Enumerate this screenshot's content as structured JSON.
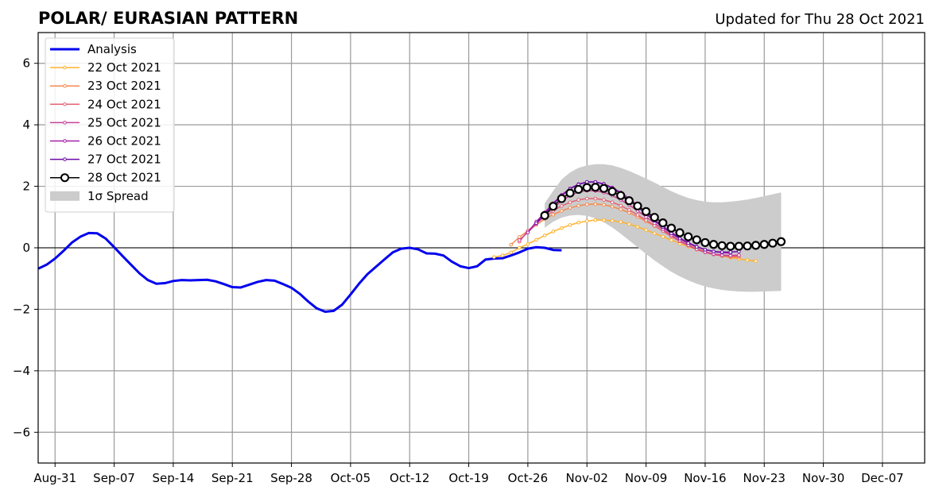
{
  "chart_data": {
    "type": "line",
    "title": "POLAR/ EURASIAN  PATTERN",
    "subtitle": "Updated for Thu 28 Oct 2021",
    "ylim": [
      -7,
      7
    ],
    "yticks": [
      -6,
      -4,
      -2,
      0,
      2,
      4,
      6
    ],
    "xlim": [
      "2021-08-29",
      "2021-12-12"
    ],
    "xticks": [
      {
        "date": "2021-08-31",
        "label": "Aug-31"
      },
      {
        "date": "2021-09-07",
        "label": "Sep-07"
      },
      {
        "date": "2021-09-14",
        "label": "Sep-14"
      },
      {
        "date": "2021-09-21",
        "label": "Sep-21"
      },
      {
        "date": "2021-09-28",
        "label": "Sep-28"
      },
      {
        "date": "2021-10-05",
        "label": "Oct-05"
      },
      {
        "date": "2021-10-12",
        "label": "Oct-12"
      },
      {
        "date": "2021-10-19",
        "label": "Oct-19"
      },
      {
        "date": "2021-10-26",
        "label": "Oct-26"
      },
      {
        "date": "2021-11-02",
        "label": "Nov-02"
      },
      {
        "date": "2021-11-09",
        "label": "Nov-09"
      },
      {
        "date": "2021-11-16",
        "label": "Nov-16"
      },
      {
        "date": "2021-11-23",
        "label": "Nov-23"
      },
      {
        "date": "2021-11-30",
        "label": "Nov-30"
      },
      {
        "date": "2021-12-07",
        "label": "Dec-07"
      }
    ],
    "grid": true,
    "legend_position": "top-left",
    "analysis": {
      "name": "Analysis",
      "color": "#0000ee",
      "start": "2021-08-29",
      "values": [
        -0.68,
        -0.55,
        -0.35,
        -0.1,
        0.17,
        0.36,
        0.48,
        0.47,
        0.3,
        0.02,
        -0.27,
        -0.55,
        -0.83,
        -1.05,
        -1.17,
        -1.15,
        -1.08,
        -1.05,
        -1.06,
        -1.05,
        -1.04,
        -1.09,
        -1.18,
        -1.28,
        -1.29,
        -1.2,
        -1.11,
        -1.05,
        -1.07,
        -1.18,
        -1.3,
        -1.5,
        -1.75,
        -1.97,
        -2.08,
        -2.05,
        -1.85,
        -1.52,
        -1.17,
        -0.86,
        -0.62,
        -0.38,
        -0.15,
        -0.03,
        0.0,
        -0.05,
        -0.18,
        -0.19,
        -0.25,
        -0.45,
        -0.6,
        -0.66,
        -0.6,
        -0.38,
        -0.35,
        -0.34,
        -0.25,
        -0.15,
        -0.03,
        0.02,
        0.0,
        -0.07,
        -0.08
      ]
    },
    "forecasts": [
      {
        "name": "22 Oct 2021",
        "color": "#ffb22b",
        "start": "2021-10-22",
        "values": [
          -0.3,
          -0.25,
          -0.15,
          0.0,
          0.12,
          0.26,
          0.4,
          0.53,
          0.64,
          0.74,
          0.82,
          0.87,
          0.9,
          0.9,
          0.88,
          0.84,
          0.77,
          0.68,
          0.58,
          0.47,
          0.36,
          0.25,
          0.14,
          0.04,
          -0.06,
          -0.14,
          -0.21,
          -0.27,
          -0.32,
          -0.36,
          -0.4,
          -0.43
        ]
      },
      {
        "name": "23 Oct 2021",
        "color": "#f58a4e",
        "start": "2021-10-24",
        "values": [
          0.1,
          0.35,
          0.55,
          0.75,
          0.93,
          1.08,
          1.2,
          1.3,
          1.37,
          1.41,
          1.42,
          1.4,
          1.34,
          1.25,
          1.14,
          1.01,
          0.86,
          0.71,
          0.55,
          0.39,
          0.24,
          0.1,
          -0.02,
          -0.12,
          -0.2,
          -0.26,
          -0.3,
          -0.31
        ]
      },
      {
        "name": "24 Oct 2021",
        "color": "#e36275",
        "start": "2021-10-25",
        "values": [
          0.2,
          0.55,
          0.8,
          1.0,
          1.2,
          1.36,
          1.48,
          1.56,
          1.6,
          1.6,
          1.56,
          1.48,
          1.37,
          1.23,
          1.07,
          0.9,
          0.72,
          0.54,
          0.37,
          0.21,
          0.07,
          -0.05,
          -0.15,
          -0.22,
          -0.26,
          -0.28,
          -0.27
        ]
      },
      {
        "name": "25 Oct 2021",
        "color": "#c94096",
        "start": "2021-10-25",
        "values": [
          0.25,
          0.5,
          0.78,
          1.05,
          1.3,
          1.52,
          1.7,
          1.82,
          1.86,
          1.85,
          1.8,
          1.7,
          1.56,
          1.39,
          1.2,
          1.0,
          0.8,
          0.6,
          0.41,
          0.23,
          0.08,
          -0.05,
          -0.14,
          -0.2,
          -0.24,
          -0.25,
          -0.24
        ]
      },
      {
        "name": "26 Oct 2021",
        "color": "#a520a8",
        "start": "2021-10-26",
        "values": [
          0.5,
          0.85,
          1.15,
          1.45,
          1.72,
          1.93,
          2.07,
          2.14,
          2.14,
          2.08,
          1.96,
          1.8,
          1.6,
          1.38,
          1.15,
          0.92,
          0.7,
          0.5,
          0.32,
          0.17,
          0.04,
          -0.06,
          -0.12,
          -0.16,
          -0.17
        ]
      },
      {
        "name": "27 Oct 2021",
        "color": "#6a0ba8",
        "start": "2021-10-27",
        "values": [
          0.8,
          1.1,
          1.42,
          1.7,
          1.92,
          2.06,
          2.14,
          2.14,
          2.07,
          1.94,
          1.76,
          1.55,
          1.33,
          1.1,
          0.88,
          0.67,
          0.47,
          0.3,
          0.15,
          0.03,
          -0.06,
          -0.12,
          -0.14,
          -0.14,
          -0.12
        ]
      },
      {
        "name": "28 Oct 2021",
        "color": "#000000",
        "start": "2021-10-28",
        "markers": "open-circle",
        "values": [
          1.05,
          1.35,
          1.6,
          1.78,
          1.9,
          1.96,
          1.97,
          1.93,
          1.83,
          1.7,
          1.53,
          1.36,
          1.18,
          0.99,
          0.81,
          0.64,
          0.49,
          0.36,
          0.26,
          0.17,
          0.11,
          0.07,
          0.05,
          0.05,
          0.06,
          0.08,
          0.11,
          0.15,
          0.2
        ]
      }
    ],
    "spread": {
      "name": "1σ Spread",
      "color": "#cccccc",
      "start": "2021-10-28",
      "lower": [
        0.65,
        0.85,
        0.98,
        1.05,
        1.07,
        1.04,
        0.96,
        0.83,
        0.66,
        0.46,
        0.24,
        0.02,
        -0.2,
        -0.41,
        -0.6,
        -0.78,
        -0.93,
        -1.06,
        -1.17,
        -1.26,
        -1.32,
        -1.37,
        -1.4,
        -1.42,
        -1.43,
        -1.43,
        -1.42,
        -1.41,
        -1.4
      ],
      "upper": [
        1.45,
        1.85,
        2.22,
        2.45,
        2.6,
        2.68,
        2.72,
        2.72,
        2.68,
        2.6,
        2.5,
        2.38,
        2.25,
        2.12,
        1.98,
        1.84,
        1.72,
        1.62,
        1.55,
        1.5,
        1.48,
        1.48,
        1.5,
        1.53,
        1.57,
        1.62,
        1.68,
        1.74,
        1.8
      ]
    }
  }
}
